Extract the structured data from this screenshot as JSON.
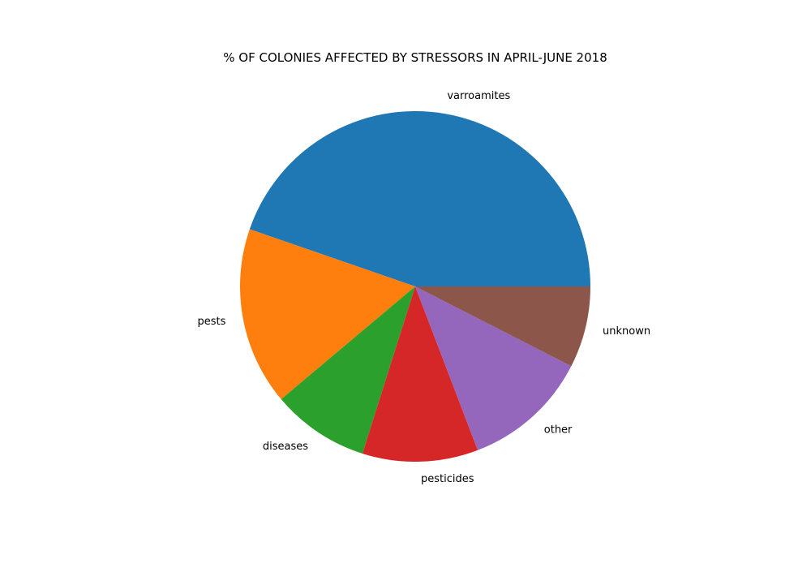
{
  "chart_data": {
    "type": "pie",
    "title": "% OF COLONIES AFFECTED BY STRESSORS IN APRIL-JUNE 2018",
    "categories": [
      "varroamites",
      "pests",
      "diseases",
      "pesticides",
      "other",
      "unknown"
    ],
    "values": [
      45.2,
      16.6,
      9.1,
      10.8,
      11.8,
      7.6
    ],
    "colors": [
      "#1f77b4",
      "#ff7f0e",
      "#2ca02c",
      "#d62728",
      "#9467bd",
      "#8c564b"
    ],
    "start_angle_deg": 0,
    "direction": "counterclockwise",
    "legend": "none"
  }
}
